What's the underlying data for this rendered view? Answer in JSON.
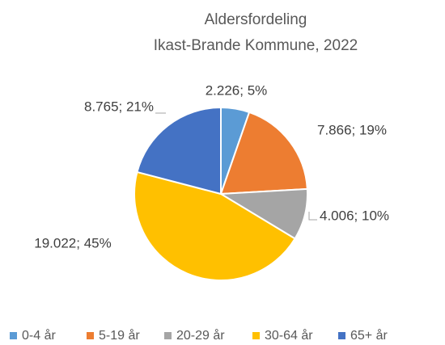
{
  "chart_data": {
    "type": "pie",
    "title": "Aldersfordeling",
    "subtitle": "Ikast-Brande Kommune, 2022",
    "categories": [
      "0-4 år",
      "5-19 år",
      "20-29 år",
      "30-64 år",
      "65+ år"
    ],
    "values": [
      2226,
      7866,
      4006,
      19022,
      8765
    ],
    "value_labels": [
      "2.226; 5%",
      "7.866; 19%",
      "4.006; 10%",
      "19.022; 45%",
      "8.765; 21%"
    ],
    "colors": [
      "#5b9bd5",
      "#ed7d31",
      "#a5a5a5",
      "#ffc000",
      "#4472c4"
    ],
    "legend": "bottom"
  }
}
